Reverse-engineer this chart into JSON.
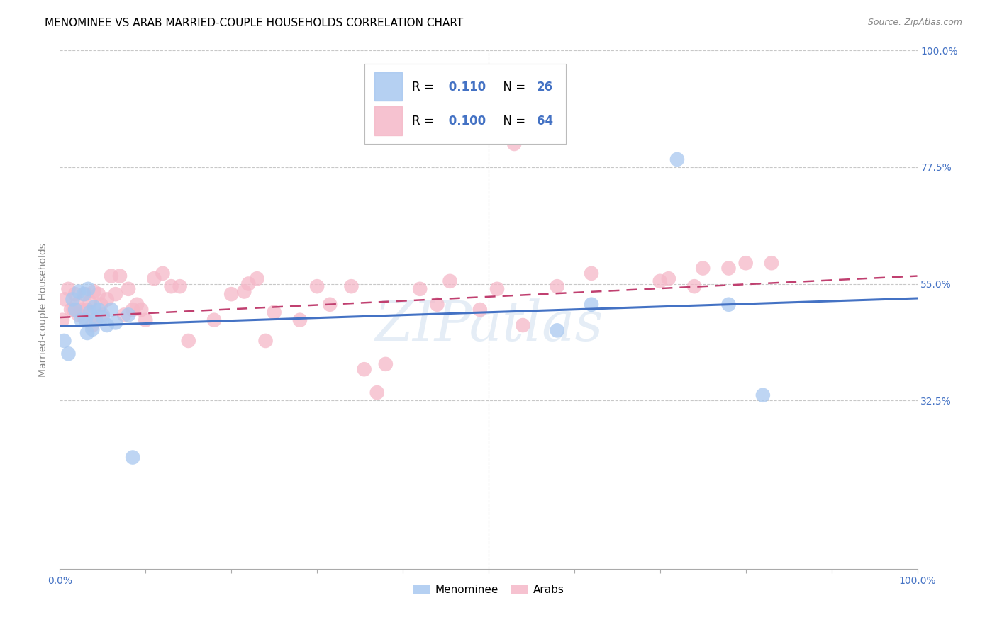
{
  "title": "MENOMINEE VS ARAB MARRIED-COUPLE HOUSEHOLDS CORRELATION CHART",
  "source": "Source: ZipAtlas.com",
  "ylabel": "Married-couple Households",
  "xlim": [
    0.0,
    1.0
  ],
  "ylim": [
    0.0,
    1.0
  ],
  "ytick_positions": [
    1.0,
    0.775,
    0.55,
    0.325
  ],
  "ytick_labels": [
    "100.0%",
    "77.5%",
    "55.0%",
    "32.5%"
  ],
  "xtick_positions": [
    0.0,
    0.1,
    0.2,
    0.3,
    0.4,
    0.5,
    0.6,
    0.7,
    0.8,
    0.9,
    1.0
  ],
  "menominee_R": 0.11,
  "menominee_N": 26,
  "arab_R": 0.1,
  "arab_N": 64,
  "menominee_color": "#a8c8f0",
  "arab_color": "#f5b8c8",
  "menominee_line_color": "#4472c4",
  "arab_line_color": "#c04070",
  "background_color": "#ffffff",
  "grid_color": "#c8c8c8",
  "axis_color": "#4472c4",
  "menominee_x": [
    0.005,
    0.01,
    0.015,
    0.018,
    0.022,
    0.025,
    0.028,
    0.03,
    0.032,
    0.033,
    0.035,
    0.038,
    0.04,
    0.042,
    0.045,
    0.05,
    0.055,
    0.06,
    0.065,
    0.08,
    0.085,
    0.58,
    0.62,
    0.72,
    0.78,
    0.82
  ],
  "menominee_y": [
    0.44,
    0.415,
    0.52,
    0.5,
    0.535,
    0.48,
    0.53,
    0.48,
    0.455,
    0.54,
    0.495,
    0.462,
    0.505,
    0.48,
    0.5,
    0.485,
    0.47,
    0.5,
    0.475,
    0.49,
    0.215,
    0.46,
    0.51,
    0.79,
    0.51,
    0.335
  ],
  "arab_x": [
    0.003,
    0.006,
    0.01,
    0.013,
    0.016,
    0.018,
    0.02,
    0.022,
    0.025,
    0.028,
    0.03,
    0.032,
    0.035,
    0.038,
    0.04,
    0.042,
    0.045,
    0.048,
    0.05,
    0.055,
    0.06,
    0.065,
    0.07,
    0.075,
    0.08,
    0.085,
    0.09,
    0.095,
    0.1,
    0.11,
    0.12,
    0.13,
    0.14,
    0.15,
    0.18,
    0.2,
    0.215,
    0.22,
    0.23,
    0.24,
    0.25,
    0.28,
    0.3,
    0.315,
    0.34,
    0.355,
    0.37,
    0.38,
    0.42,
    0.44,
    0.455,
    0.49,
    0.51,
    0.53,
    0.54,
    0.58,
    0.62,
    0.7,
    0.71,
    0.74,
    0.75,
    0.78,
    0.8,
    0.83
  ],
  "arab_y": [
    0.48,
    0.52,
    0.54,
    0.5,
    0.5,
    0.53,
    0.51,
    0.49,
    0.5,
    0.485,
    0.53,
    0.5,
    0.515,
    0.47,
    0.535,
    0.48,
    0.53,
    0.51,
    0.49,
    0.52,
    0.565,
    0.53,
    0.565,
    0.49,
    0.54,
    0.5,
    0.51,
    0.5,
    0.48,
    0.56,
    0.57,
    0.545,
    0.545,
    0.44,
    0.48,
    0.53,
    0.535,
    0.55,
    0.56,
    0.44,
    0.495,
    0.48,
    0.545,
    0.51,
    0.545,
    0.385,
    0.34,
    0.395,
    0.54,
    0.51,
    0.555,
    0.5,
    0.54,
    0.82,
    0.47,
    0.545,
    0.57,
    0.555,
    0.56,
    0.545,
    0.58,
    0.58,
    0.59,
    0.59
  ],
  "menominee_trend_x": [
    0.0,
    1.0
  ],
  "menominee_trend_y": [
    0.468,
    0.522
  ],
  "arab_trend_x": [
    0.0,
    1.0
  ],
  "arab_trend_y": [
    0.485,
    0.565
  ],
  "watermark": "ZIPatlas",
  "title_fontsize": 11,
  "label_fontsize": 10,
  "tick_fontsize": 10,
  "source_fontsize": 9,
  "legend_R_text_color": "#000000",
  "legend_N_text_color": "#4472c4"
}
